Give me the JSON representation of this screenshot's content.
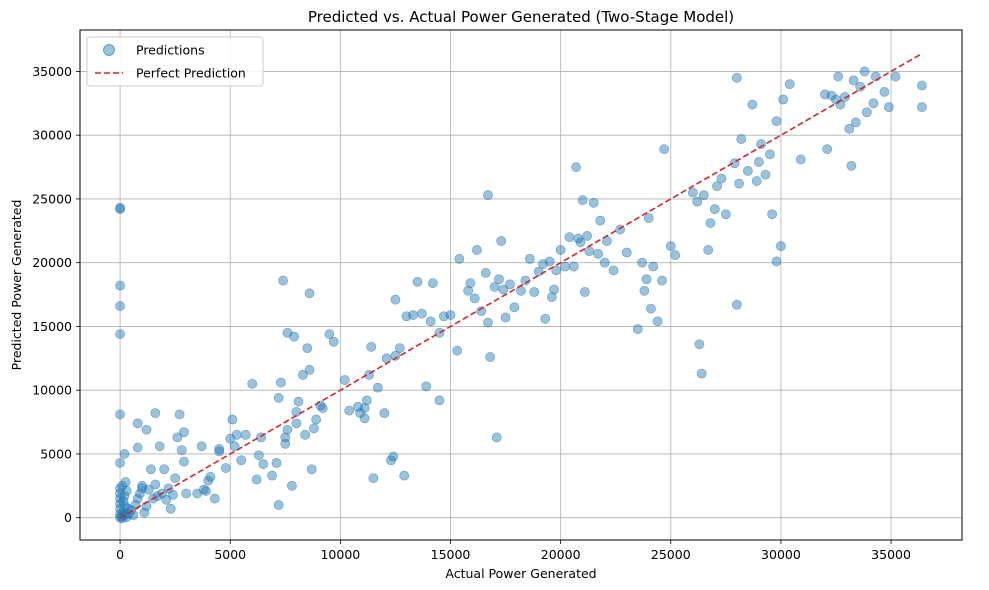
{
  "chart_data": {
    "type": "scatter",
    "title": "Predicted vs. Actual Power Generated (Two-Stage Model)",
    "xlabel": "Actual Power Generated",
    "ylabel": "Predicted Power Generated",
    "xlim": [
      -1820,
      38220
    ],
    "ylim": [
      -1750,
      38250
    ],
    "xticks": [
      0,
      5000,
      10000,
      15000,
      20000,
      25000,
      30000,
      35000
    ],
    "yticks": [
      0,
      5000,
      10000,
      15000,
      20000,
      25000,
      30000,
      35000
    ],
    "grid": true,
    "legend_position": "top-left",
    "colors": {
      "points": "#1f77b4",
      "line": "#d62728",
      "grid": "#b0b0b0"
    },
    "series": [
      {
        "name": "Predictions",
        "kind": "scatter",
        "points": [
          [
            0,
            0
          ],
          [
            0,
            300
          ],
          [
            0,
            700
          ],
          [
            0,
            1100
          ],
          [
            0,
            1500
          ],
          [
            0,
            1900
          ],
          [
            0,
            2300
          ],
          [
            0,
            4300
          ],
          [
            0,
            8100
          ],
          [
            0,
            14400
          ],
          [
            0,
            16600
          ],
          [
            0,
            18200
          ],
          [
            0,
            24200
          ],
          [
            0,
            24300
          ],
          [
            50,
            100
          ],
          [
            100,
            -50
          ],
          [
            150,
            400
          ],
          [
            200,
            200
          ],
          [
            250,
            900
          ],
          [
            300,
            50
          ],
          [
            350,
            700
          ],
          [
            400,
            300
          ],
          [
            150,
            1300
          ],
          [
            200,
            1700
          ],
          [
            300,
            2100
          ],
          [
            100,
            2500
          ],
          [
            250,
            2800
          ],
          [
            200,
            5000
          ],
          [
            500,
            600
          ],
          [
            600,
            200
          ],
          [
            700,
            1000
          ],
          [
            800,
            1500
          ],
          [
            900,
            1900
          ],
          [
            1000,
            2500
          ],
          [
            1100,
            400
          ],
          [
            1200,
            900
          ],
          [
            1300,
            2200
          ],
          [
            1400,
            3800
          ],
          [
            1500,
            1500
          ],
          [
            1600,
            2600
          ],
          [
            1700,
            1700
          ],
          [
            1800,
            5600
          ],
          [
            1900,
            1900
          ],
          [
            2000,
            3800
          ],
          [
            2100,
            1400
          ],
          [
            2200,
            2300
          ],
          [
            2300,
            700
          ],
          [
            2400,
            1800
          ],
          [
            2500,
            3100
          ],
          [
            2600,
            6300
          ],
          [
            2800,
            5300
          ],
          [
            2900,
            6700
          ],
          [
            2700,
            8100
          ],
          [
            2900,
            4400
          ],
          [
            3000,
            1900
          ],
          [
            1600,
            8200
          ],
          [
            1200,
            6900
          ],
          [
            800,
            7400
          ],
          [
            800,
            5500
          ],
          [
            1000,
            2300
          ],
          [
            3500,
            1900
          ],
          [
            3700,
            5600
          ],
          [
            3800,
            2200
          ],
          [
            3900,
            2100
          ],
          [
            4000,
            2900
          ],
          [
            4100,
            3200
          ],
          [
            4300,
            1500
          ],
          [
            4500,
            5200
          ],
          [
            4500,
            5400
          ],
          [
            4800,
            3900
          ],
          [
            5000,
            6200
          ],
          [
            5100,
            7700
          ],
          [
            5200,
            5600
          ],
          [
            5300,
            6500
          ],
          [
            5500,
            4500
          ],
          [
            5700,
            6500
          ],
          [
            6000,
            10500
          ],
          [
            6200,
            3000
          ],
          [
            6300,
            4900
          ],
          [
            6400,
            6300
          ],
          [
            6500,
            4200
          ],
          [
            6900,
            3300
          ],
          [
            7100,
            4300
          ],
          [
            7200,
            1000
          ],
          [
            7200,
            9400
          ],
          [
            7300,
            10600
          ],
          [
            7400,
            18600
          ],
          [
            7500,
            5800
          ],
          [
            7500,
            6300
          ],
          [
            7600,
            14500
          ],
          [
            7600,
            6900
          ],
          [
            7800,
            2500
          ],
          [
            7900,
            14200
          ],
          [
            8000,
            7400
          ],
          [
            8000,
            8300
          ],
          [
            8100,
            9100
          ],
          [
            8300,
            11200
          ],
          [
            8400,
            6500
          ],
          [
            8500,
            13300
          ],
          [
            8600,
            17600
          ],
          [
            8600,
            11600
          ],
          [
            8700,
            3800
          ],
          [
            8800,
            7000
          ],
          [
            8900,
            7700
          ],
          [
            9100,
            8800
          ],
          [
            9200,
            8600
          ],
          [
            9500,
            14400
          ],
          [
            9700,
            13800
          ],
          [
            10200,
            10800
          ],
          [
            10400,
            8400
          ],
          [
            10800,
            8700
          ],
          [
            10900,
            8200
          ],
          [
            11100,
            7800
          ],
          [
            11100,
            8600
          ],
          [
            11200,
            9200
          ],
          [
            11300,
            11200
          ],
          [
            11400,
            13400
          ],
          [
            11500,
            3100
          ],
          [
            11700,
            10200
          ],
          [
            12000,
            8200
          ],
          [
            12100,
            12500
          ],
          [
            12300,
            4500
          ],
          [
            12400,
            4800
          ],
          [
            12500,
            12700
          ],
          [
            12500,
            17100
          ],
          [
            12700,
            13300
          ],
          [
            12900,
            3300
          ],
          [
            13000,
            15800
          ],
          [
            13300,
            15900
          ],
          [
            13500,
            18500
          ],
          [
            13700,
            16000
          ],
          [
            13900,
            10300
          ],
          [
            14100,
            15400
          ],
          [
            14200,
            18400
          ],
          [
            14500,
            9200
          ],
          [
            14500,
            14500
          ],
          [
            14700,
            15800
          ],
          [
            15000,
            15900
          ],
          [
            15300,
            13100
          ],
          [
            15400,
            20300
          ],
          [
            15800,
            17800
          ],
          [
            15900,
            18400
          ],
          [
            16100,
            17200
          ],
          [
            16200,
            21000
          ],
          [
            16400,
            16200
          ],
          [
            16600,
            19200
          ],
          [
            16700,
            25300
          ],
          [
            16700,
            15300
          ],
          [
            16800,
            12600
          ],
          [
            17000,
            18100
          ],
          [
            17100,
            6300
          ],
          [
            17200,
            18700
          ],
          [
            17300,
            21700
          ],
          [
            17400,
            17900
          ],
          [
            17500,
            15700
          ],
          [
            17700,
            18300
          ],
          [
            17900,
            16500
          ],
          [
            18200,
            17800
          ],
          [
            18400,
            18600
          ],
          [
            18600,
            20300
          ],
          [
            18800,
            17700
          ],
          [
            19000,
            19300
          ],
          [
            19200,
            19900
          ],
          [
            19300,
            15600
          ],
          [
            19500,
            20100
          ],
          [
            19600,
            17300
          ],
          [
            19700,
            17900
          ],
          [
            19800,
            19400
          ],
          [
            20000,
            21000
          ],
          [
            20200,
            19700
          ],
          [
            20400,
            22000
          ],
          [
            20600,
            19700
          ],
          [
            20700,
            27500
          ],
          [
            20800,
            21900
          ],
          [
            20900,
            21600
          ],
          [
            21000,
            24900
          ],
          [
            21100,
            17700
          ],
          [
            21200,
            22100
          ],
          [
            21300,
            20900
          ],
          [
            21500,
            24700
          ],
          [
            21700,
            20700
          ],
          [
            21800,
            23300
          ],
          [
            22000,
            20000
          ],
          [
            22100,
            21700
          ],
          [
            22400,
            19400
          ],
          [
            22700,
            22600
          ],
          [
            23000,
            20800
          ],
          [
            23500,
            14800
          ],
          [
            23700,
            20000
          ],
          [
            23800,
            17800
          ],
          [
            23900,
            18700
          ],
          [
            24000,
            23500
          ],
          [
            24100,
            16400
          ],
          [
            24200,
            19700
          ],
          [
            24400,
            15400
          ],
          [
            24600,
            18600
          ],
          [
            24700,
            28900
          ],
          [
            25000,
            21300
          ],
          [
            25200,
            20600
          ],
          [
            26000,
            25500
          ],
          [
            26200,
            24800
          ],
          [
            26300,
            13600
          ],
          [
            26400,
            11300
          ],
          [
            26500,
            25300
          ],
          [
            26700,
            21000
          ],
          [
            26800,
            23100
          ],
          [
            27000,
            24200
          ],
          [
            27100,
            26000
          ],
          [
            27300,
            26600
          ],
          [
            27500,
            23800
          ],
          [
            27900,
            27800
          ],
          [
            28000,
            34500
          ],
          [
            28000,
            16700
          ],
          [
            28100,
            26200
          ],
          [
            28200,
            29700
          ],
          [
            28500,
            27200
          ],
          [
            28700,
            32400
          ],
          [
            28900,
            26400
          ],
          [
            29000,
            27900
          ],
          [
            29100,
            29300
          ],
          [
            29300,
            26900
          ],
          [
            29500,
            28500
          ],
          [
            29600,
            23800
          ],
          [
            29800,
            20100
          ],
          [
            29800,
            31100
          ],
          [
            30000,
            21300
          ],
          [
            30100,
            32800
          ],
          [
            30400,
            34000
          ],
          [
            30900,
            28100
          ],
          [
            32000,
            33200
          ],
          [
            32100,
            28900
          ],
          [
            32300,
            33100
          ],
          [
            32500,
            32800
          ],
          [
            32600,
            34600
          ],
          [
            32700,
            32400
          ],
          [
            32900,
            33000
          ],
          [
            33100,
            30500
          ],
          [
            33200,
            27600
          ],
          [
            33300,
            34300
          ],
          [
            33400,
            31000
          ],
          [
            33600,
            33800
          ],
          [
            33800,
            35000
          ],
          [
            33900,
            31800
          ],
          [
            34200,
            32500
          ],
          [
            34300,
            34600
          ],
          [
            34700,
            33400
          ],
          [
            34900,
            32200
          ],
          [
            35200,
            34600
          ],
          [
            36400,
            33900
          ],
          [
            36400,
            32200
          ]
        ]
      },
      {
        "name": "Perfect Prediction",
        "kind": "line",
        "points": [
          [
            0,
            0
          ],
          [
            36400,
            36400
          ]
        ]
      }
    ]
  }
}
